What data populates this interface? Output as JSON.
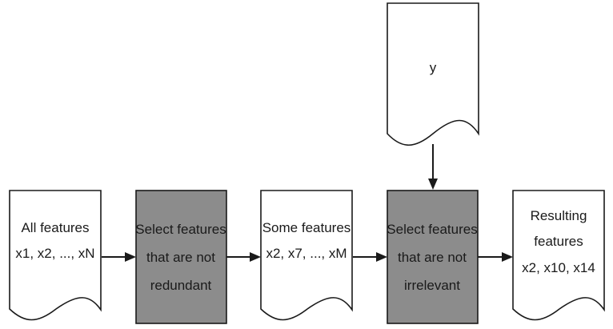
{
  "diagram": {
    "target": {
      "label": "y"
    },
    "all_features": {
      "line1": "All features",
      "line2": "x1, x2, ..., xN"
    },
    "select_not_redundant": {
      "line1": "Select features",
      "line2": "that are not",
      "line3": "redundant"
    },
    "some_features": {
      "line1": "Some features",
      "line2": "x2, x7, ..., xM"
    },
    "select_not_irrelevant": {
      "line1": "Select features",
      "line2": "that are not",
      "line3": "irrelevant"
    },
    "resulting_features": {
      "line1": "Resulting",
      "line2": "features",
      "line3": "x2, x10, x14"
    }
  }
}
